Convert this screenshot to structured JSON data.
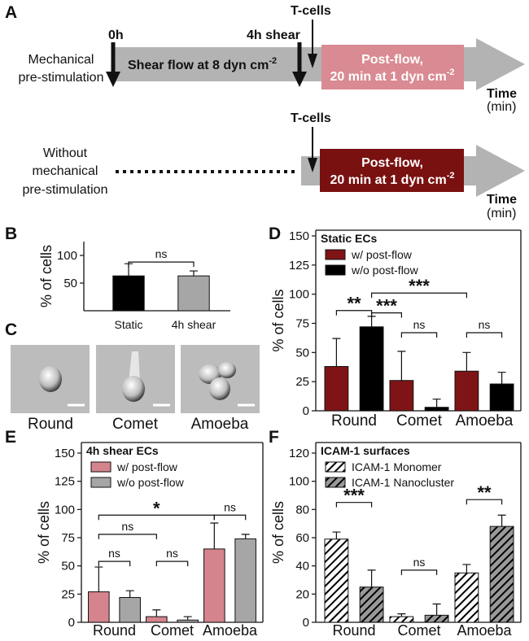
{
  "panel_labels": [
    "A",
    "B",
    "C",
    "D",
    "E",
    "F"
  ],
  "diagram": {
    "with": {
      "start": "0h",
      "shear_end": "4h shear",
      "tcells": "T-cells",
      "label": [
        "Mechanical",
        "pre-stimulation"
      ],
      "shear": "Shear flow at 8 dyn cm",
      "shear_exp": "-2",
      "post": [
        "Post-flow,",
        "20 min at 1 dyn cm"
      ],
      "post_exp": "-2",
      "time": "Time",
      "time_unit": "(min)"
    },
    "without": {
      "tcells": "T-cells",
      "label": [
        "Without",
        "mechanical",
        "pre-stimulation"
      ],
      "post": [
        "Post-flow,",
        "20 min at 1 dyn cm"
      ],
      "post_exp": "-2",
      "time": "Time",
      "time_unit": "(min)"
    }
  },
  "images": {
    "labels": [
      "Round",
      "Comet",
      "Amoeba"
    ]
  },
  "chart_data": [
    {
      "type": "bar",
      "ylabel": "% of cells",
      "categories": [
        "Static",
        "4h shear"
      ],
      "values": [
        63,
        63
      ],
      "errors": [
        22,
        9
      ],
      "colors": [
        "#000000",
        "#a6a6a6"
      ],
      "ylim": [
        0,
        125
      ],
      "yticks": [
        50,
        100
      ],
      "annotations": [
        "ns"
      ]
    },
    {
      "type": "bar",
      "title": "Static ECs",
      "ylabel": "% of cells",
      "categories": [
        "Round",
        "Comet",
        "Amoeba"
      ],
      "series": [
        {
          "name": "w/ post-flow",
          "color": "#7f1416",
          "values": [
            38,
            26,
            34
          ],
          "errors": [
            24,
            25,
            16
          ]
        },
        {
          "name": "w/o post-flow",
          "color": "#000000",
          "values": [
            72,
            3,
            23
          ],
          "errors": [
            9,
            7,
            10
          ]
        }
      ],
      "ylim": [
        0,
        150
      ],
      "yticks": [
        0,
        25,
        50,
        75,
        100,
        125,
        150
      ],
      "legend": "upper left",
      "annotations": [
        "**",
        "***",
        "***",
        "ns",
        "ns"
      ]
    },
    {
      "type": "bar",
      "title": "4h shear ECs",
      "ylabel": "% of cells",
      "categories": [
        "Round",
        "Comet",
        "Amoeba"
      ],
      "series": [
        {
          "name": "w/ post-flow",
          "color": "#d5848d",
          "values": [
            27,
            5,
            65
          ],
          "errors": [
            22,
            6,
            23
          ]
        },
        {
          "name": "w/o post-flow",
          "color": "#a6a6a6",
          "values": [
            22,
            2,
            74
          ],
          "errors": [
            6,
            3,
            4
          ]
        }
      ],
      "ylim": [
        0,
        150
      ],
      "yticks": [
        0,
        25,
        50,
        75,
        100,
        125,
        150
      ],
      "legend": "upper left",
      "annotations": [
        "*",
        "ns",
        "ns",
        "ns",
        "ns"
      ]
    },
    {
      "type": "bar",
      "title": "ICAM-1 surfaces",
      "ylabel": "% of cells",
      "categories": [
        "Round",
        "Comet",
        "Amoeba"
      ],
      "series": [
        {
          "name": "ICAM-1 Monomer",
          "color": "#ffffff",
          "hatch": true,
          "values": [
            59,
            4,
            35
          ],
          "errors": [
            5,
            2,
            6
          ]
        },
        {
          "name": "ICAM-1 Nanocluster",
          "color": "#999999",
          "hatch": true,
          "values": [
            25,
            5,
            68
          ],
          "errors": [
            12,
            8,
            8
          ]
        }
      ],
      "ylim": [
        0,
        120
      ],
      "yticks": [
        0,
        20,
        40,
        60,
        80,
        100,
        120
      ],
      "legend": "upper left",
      "annotations": [
        "***",
        "ns",
        "**"
      ]
    }
  ]
}
